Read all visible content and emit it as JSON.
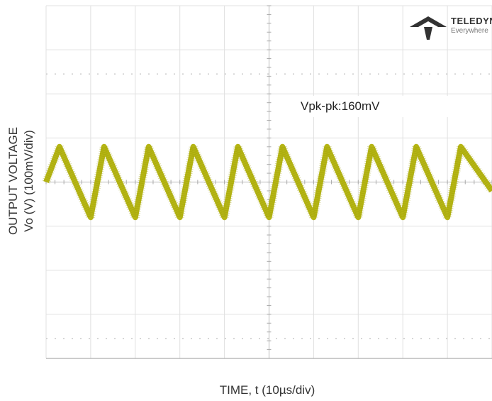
{
  "chart_data": {
    "type": "line",
    "title": "",
    "xlabel": "TIME, t (10µs/div)",
    "ylabel_line1": "OUTPUT VOLTAGE",
    "ylabel_line2": "Vo (V) (100mV/div)",
    "annotation": "Vpk-pk:160mV",
    "logo_text": "TELEDYNE",
    "logo_sub": "Everywhere",
    "grid": true,
    "trace_color": "#b5b515",
    "grid_color": "#e0e0e0",
    "x_divisions": 10,
    "y_divisions": 8,
    "series": [
      {
        "values_x_us": [
          0,
          3,
          10,
          13,
          20,
          23,
          30,
          33,
          40,
          43,
          50,
          53,
          60,
          63,
          70,
          73,
          80,
          83,
          90,
          93,
          100
        ],
        "values_mv": [
          0,
          80,
          -80,
          80,
          -80,
          80,
          -80,
          80,
          -80,
          80,
          -80,
          80,
          -80,
          80,
          -80,
          80,
          -80,
          80,
          -80,
          80,
          -20
        ]
      }
    ]
  }
}
